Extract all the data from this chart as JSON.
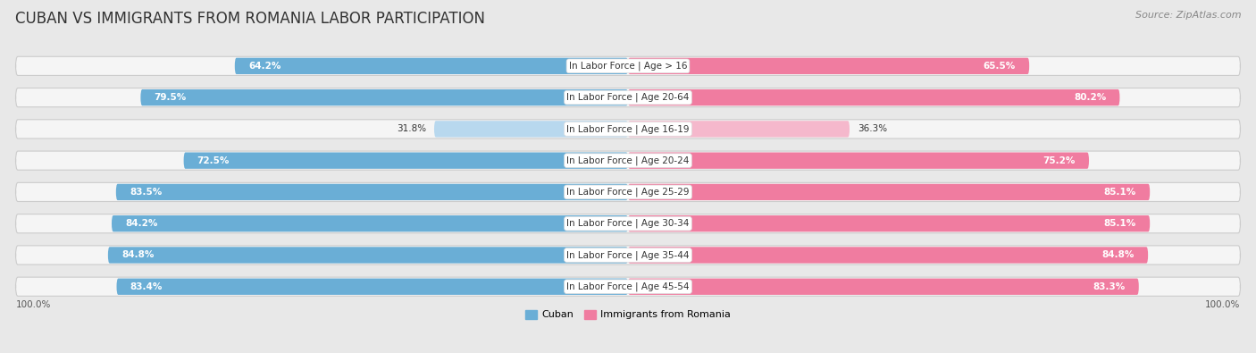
{
  "title": "CUBAN VS IMMIGRANTS FROM ROMANIA LABOR PARTICIPATION",
  "source": "Source: ZipAtlas.com",
  "categories": [
    "In Labor Force | Age > 16",
    "In Labor Force | Age 20-64",
    "In Labor Force | Age 16-19",
    "In Labor Force | Age 20-24",
    "In Labor Force | Age 25-29",
    "In Labor Force | Age 30-34",
    "In Labor Force | Age 35-44",
    "In Labor Force | Age 45-54"
  ],
  "cuban_values": [
    64.2,
    79.5,
    31.8,
    72.5,
    83.5,
    84.2,
    84.8,
    83.4
  ],
  "romania_values": [
    65.5,
    80.2,
    36.3,
    75.2,
    85.1,
    85.1,
    84.8,
    83.3
  ],
  "cuban_color": "#6aaed6",
  "cuban_color_light": "#b8d8ee",
  "romania_color": "#f07ca0",
  "romania_color_light": "#f5b8cc",
  "bg_color": "#e8e8e8",
  "row_bg_color": "#f5f5f5",
  "bar_bg_color": "#ffffff",
  "max_value": 100.0,
  "legend_cuban": "Cuban",
  "legend_romania": "Immigrants from Romania",
  "title_fontsize": 12,
  "label_fontsize": 7.5,
  "value_fontsize": 7.5,
  "source_fontsize": 8
}
